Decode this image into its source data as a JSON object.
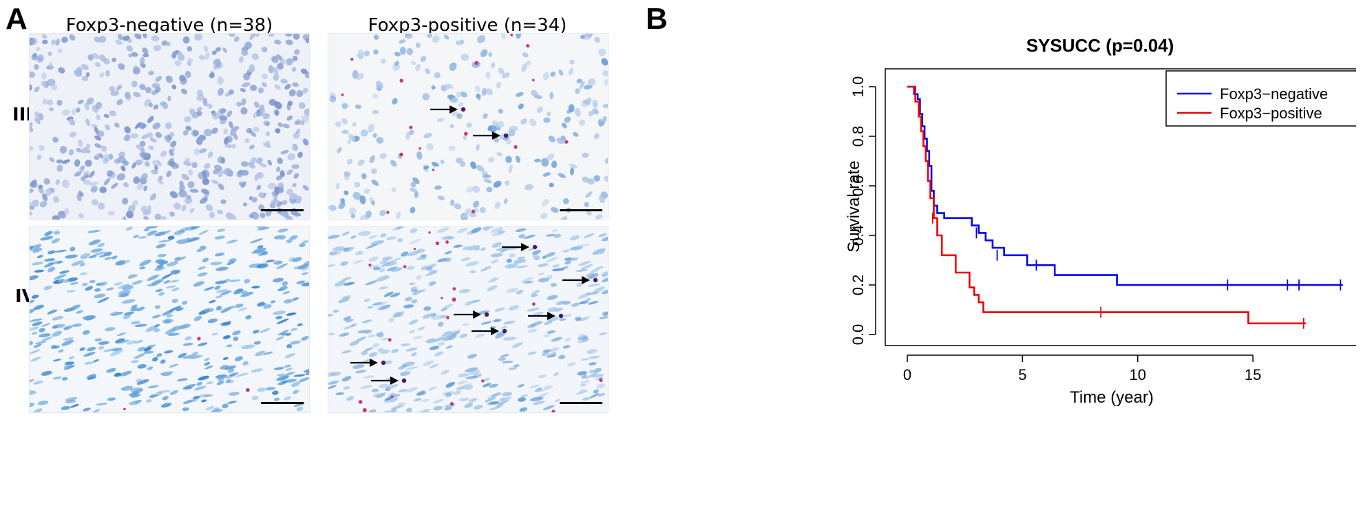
{
  "panel_a": {
    "letter": "A",
    "columns": [
      "Foxp3-negative (n=38)",
      "Foxp3-positive (n=34)"
    ],
    "rows": [
      "III",
      "IV"
    ],
    "images": [
      {
        "name": "iii-negative",
        "palette": [
          "#9fb3de",
          "#8aa2d4",
          "#b4c3e6",
          "#7f97cc"
        ],
        "bg": "#eef1f8",
        "cells": 520,
        "elongated": false,
        "positive_marks": 0,
        "arrows": 0
      },
      {
        "name": "iii-positive",
        "palette": [
          "#a9c3e6",
          "#8fb7e2",
          "#bcd1ec",
          "#6fa2d8"
        ],
        "bg": "#f4f6f8",
        "cells": 260,
        "elongated": false,
        "positive_marks": 18,
        "arrows": 2
      },
      {
        "name": "iv-negative",
        "palette": [
          "#5c9fd8",
          "#6aa8de",
          "#89bbe5",
          "#3e86cf"
        ],
        "bg": "#f3f6fa",
        "cells": 430,
        "elongated": true,
        "positive_marks": 3,
        "arrows": 0
      },
      {
        "name": "iv-positive",
        "palette": [
          "#8fb9e2",
          "#a7c8ea",
          "#6aa3d9",
          "#b6d0ec"
        ],
        "bg": "#f2f5f9",
        "cells": 420,
        "elongated": true,
        "positive_marks": 26,
        "arrows": 7
      }
    ]
  },
  "panel_b": {
    "letter": "B"
  },
  "chart_data": {
    "type": "line",
    "title": "SYSUCC (p=0.04)",
    "xlabel": "Time (year)",
    "ylabel": "Survival rate",
    "xlim": [
      0,
      19
    ],
    "ylim": [
      0,
      1
    ],
    "xticks": [
      0,
      5,
      10,
      15
    ],
    "yticks": [
      0.0,
      0.2,
      0.4,
      0.6,
      0.8,
      1.0
    ],
    "xtick_labels": [
      "0",
      "5",
      "10",
      "15"
    ],
    "ytick_labels": [
      "0.0",
      "0.2",
      "0.4",
      "0.6",
      "0.8",
      "1.0"
    ],
    "legend_position": "top-right",
    "series": [
      {
        "name": "Foxp3−negative",
        "color": "#0000ee",
        "x": [
          0,
          0.3,
          0.45,
          0.55,
          0.65,
          0.75,
          0.85,
          0.95,
          1.05,
          1.15,
          1.3,
          1.6,
          2.8,
          3.1,
          3.4,
          3.7,
          4.2,
          5.2,
          6.4,
          9.1,
          18.9
        ],
        "y": [
          1.0,
          0.97,
          0.95,
          0.89,
          0.84,
          0.79,
          0.74,
          0.68,
          0.58,
          0.52,
          0.49,
          0.47,
          0.44,
          0.41,
          0.38,
          0.35,
          0.32,
          0.28,
          0.24,
          0.2,
          0.2
        ],
        "censor_x": [
          0.9,
          3.0,
          3.9,
          5.6,
          13.9,
          16.5,
          17.0,
          18.8
        ],
        "censor_y": [
          0.68,
          0.41,
          0.32,
          0.28,
          0.2,
          0.2,
          0.2,
          0.2
        ]
      },
      {
        "name": "Foxp3−positive",
        "color": "#ee0000",
        "x": [
          0,
          0.35,
          0.5,
          0.6,
          0.7,
          0.8,
          0.9,
          1.0,
          1.15,
          1.3,
          1.5,
          2.1,
          2.7,
          2.9,
          3.1,
          3.3,
          14.8,
          17.3
        ],
        "y": [
          1.0,
          0.94,
          0.88,
          0.82,
          0.76,
          0.7,
          0.62,
          0.55,
          0.47,
          0.4,
          0.32,
          0.25,
          0.19,
          0.16,
          0.13,
          0.09,
          0.045,
          0.045
        ],
        "censor_x": [
          1.1,
          8.4,
          17.2
        ],
        "censor_y": [
          0.47,
          0.09,
          0.045
        ]
      }
    ]
  }
}
